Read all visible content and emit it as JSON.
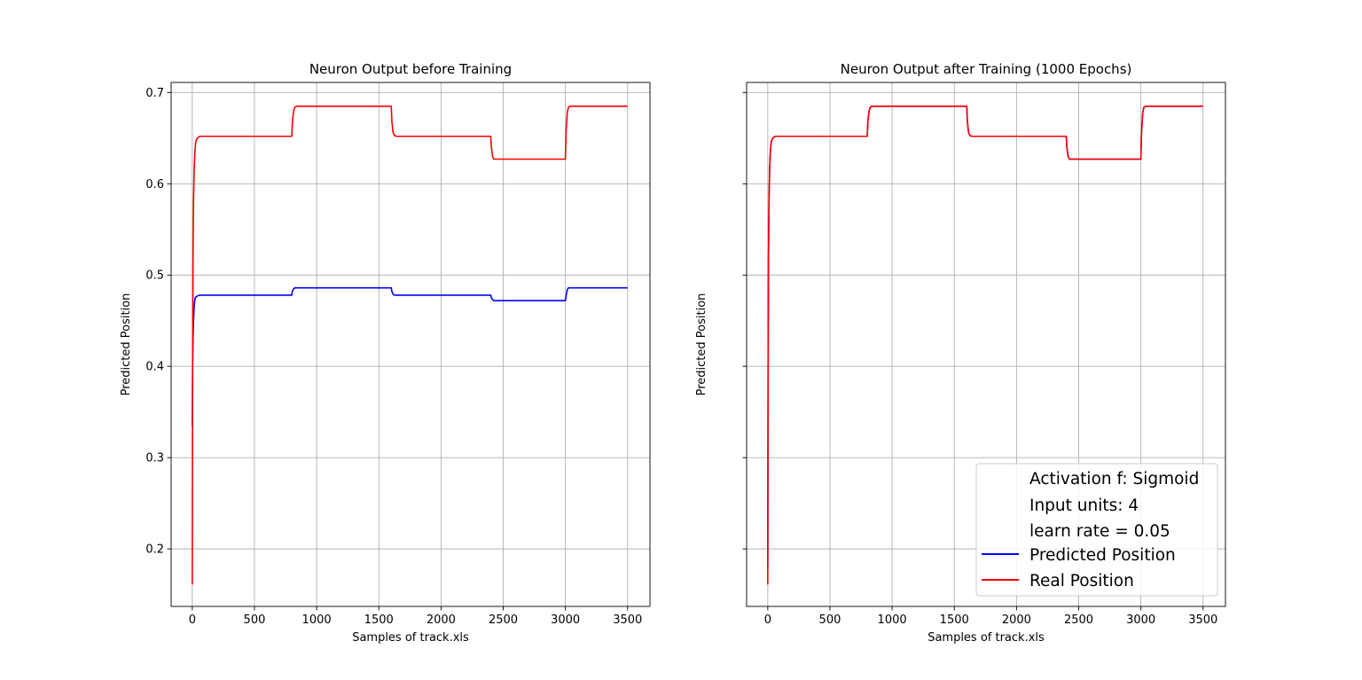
{
  "chart_data": [
    {
      "type": "line",
      "title": "Neuron Output before Training",
      "xlabel": "Samples of track.xls",
      "ylabel": "Predicted Position",
      "xlim": [
        -170,
        3680
      ],
      "ylim": [
        0.137,
        0.711
      ],
      "xticks": [
        0,
        500,
        1000,
        1500,
        2000,
        2500,
        3000,
        3500
      ],
      "yticks": [
        0.2,
        0.3,
        0.4,
        0.5,
        0.6,
        0.7
      ],
      "ytick_labels": [
        "0.2",
        "0.3",
        "0.4",
        "0.5",
        "0.6",
        "0.7"
      ],
      "grid": true,
      "series": [
        {
          "color": "#0000ff",
          "x": [
            0,
            3,
            6,
            10,
            15,
            20,
            25,
            30,
            40,
            60,
            100,
            200,
            400,
            600,
            800,
            805,
            815,
            825,
            840,
            860,
            900,
            1000,
            1200,
            1400,
            1600,
            1605,
            1615,
            1625,
            1640,
            1700,
            1800,
            2000,
            2200,
            2400,
            2405,
            2415,
            2425,
            2440,
            2600,
            2800,
            3000,
            3005,
            3015,
            3025,
            3040,
            3100,
            3300,
            3500
          ],
          "y": [
            0.335,
            0.4,
            0.43,
            0.45,
            0.465,
            0.472,
            0.475,
            0.476,
            0.477,
            0.478,
            0.478,
            0.478,
            0.478,
            0.478,
            0.478,
            0.482,
            0.485,
            0.486,
            0.486,
            0.486,
            0.486,
            0.486,
            0.486,
            0.486,
            0.486,
            0.482,
            0.479,
            0.478,
            0.478,
            0.478,
            0.478,
            0.478,
            0.478,
            0.478,
            0.475,
            0.473,
            0.472,
            0.472,
            0.472,
            0.472,
            0.472,
            0.477,
            0.484,
            0.486,
            0.486,
            0.486,
            0.486,
            0.486
          ]
        },
        {
          "color": "#ff0000",
          "x": [
            0,
            3,
            6,
            10,
            15,
            20,
            25,
            30,
            40,
            60,
            100,
            200,
            400,
            600,
            800,
            805,
            815,
            825,
            840,
            860,
            900,
            1000,
            1200,
            1400,
            1600,
            1605,
            1615,
            1625,
            1640,
            1700,
            1800,
            2000,
            2200,
            2400,
            2405,
            2415,
            2425,
            2440,
            2600,
            2800,
            3000,
            3005,
            3015,
            3025,
            3040,
            3100,
            3300,
            3500
          ],
          "y": [
            0.161,
            0.4,
            0.52,
            0.58,
            0.615,
            0.632,
            0.642,
            0.647,
            0.65,
            0.652,
            0.652,
            0.652,
            0.652,
            0.652,
            0.652,
            0.668,
            0.68,
            0.684,
            0.685,
            0.685,
            0.685,
            0.685,
            0.685,
            0.685,
            0.685,
            0.668,
            0.656,
            0.653,
            0.652,
            0.652,
            0.652,
            0.652,
            0.652,
            0.652,
            0.64,
            0.63,
            0.627,
            0.627,
            0.627,
            0.627,
            0.627,
            0.655,
            0.678,
            0.684,
            0.685,
            0.685,
            0.685,
            0.685
          ]
        }
      ]
    },
    {
      "type": "line",
      "title": "Neuron Output after Training (1000 Epochs)",
      "xlabel": "Samples of track.xls",
      "ylabel": "Predicted Position",
      "xlim": [
        -170,
        3680
      ],
      "ylim": [
        0.137,
        0.711
      ],
      "xticks": [
        0,
        500,
        1000,
        1500,
        2000,
        2500,
        3000,
        3500
      ],
      "yticks": [
        0.2,
        0.3,
        0.4,
        0.5,
        0.6,
        0.7
      ],
      "grid": true,
      "legend_position": "lower-right",
      "legend_text": [
        "Activation f: Sigmoid",
        "Input units: 4",
        "learn rate = 0.05"
      ],
      "series": [
        {
          "name": "Predicted Position",
          "color": "#0000ff",
          "x": [
            0,
            3,
            6,
            10,
            15,
            20,
            25,
            30,
            40,
            60,
            100,
            200,
            400,
            600,
            800,
            805,
            815,
            825,
            840,
            860,
            900,
            1000,
            1200,
            1400,
            1600,
            1605,
            1615,
            1625,
            1640,
            1700,
            1800,
            2000,
            2200,
            2400,
            2405,
            2415,
            2425,
            2440,
            2600,
            2800,
            3000,
            3005,
            3015,
            3025,
            3040,
            3100,
            3300,
            3500
          ],
          "y": [
            0.178,
            0.4,
            0.52,
            0.58,
            0.615,
            0.632,
            0.642,
            0.647,
            0.65,
            0.652,
            0.652,
            0.652,
            0.652,
            0.652,
            0.652,
            0.668,
            0.68,
            0.684,
            0.685,
            0.685,
            0.685,
            0.685,
            0.685,
            0.685,
            0.685,
            0.668,
            0.656,
            0.653,
            0.652,
            0.652,
            0.652,
            0.652,
            0.652,
            0.652,
            0.64,
            0.63,
            0.627,
            0.627,
            0.627,
            0.627,
            0.627,
            0.655,
            0.678,
            0.684,
            0.685,
            0.685,
            0.685,
            0.685
          ]
        },
        {
          "name": "Real Position",
          "color": "#ff0000",
          "x": [
            0,
            3,
            6,
            10,
            15,
            20,
            25,
            30,
            40,
            60,
            100,
            200,
            400,
            600,
            800,
            805,
            815,
            825,
            840,
            860,
            900,
            1000,
            1200,
            1400,
            1600,
            1605,
            1615,
            1625,
            1640,
            1700,
            1800,
            2000,
            2200,
            2400,
            2405,
            2415,
            2425,
            2440,
            2600,
            2800,
            3000,
            3005,
            3015,
            3025,
            3040,
            3100,
            3300,
            3500
          ],
          "y": [
            0.161,
            0.4,
            0.52,
            0.58,
            0.615,
            0.632,
            0.642,
            0.647,
            0.65,
            0.652,
            0.652,
            0.652,
            0.652,
            0.652,
            0.652,
            0.668,
            0.68,
            0.684,
            0.685,
            0.685,
            0.685,
            0.685,
            0.685,
            0.685,
            0.685,
            0.668,
            0.656,
            0.653,
            0.652,
            0.652,
            0.652,
            0.652,
            0.652,
            0.652,
            0.64,
            0.63,
            0.627,
            0.627,
            0.627,
            0.627,
            0.627,
            0.655,
            0.678,
            0.684,
            0.685,
            0.685,
            0.685,
            0.685
          ]
        }
      ]
    }
  ]
}
